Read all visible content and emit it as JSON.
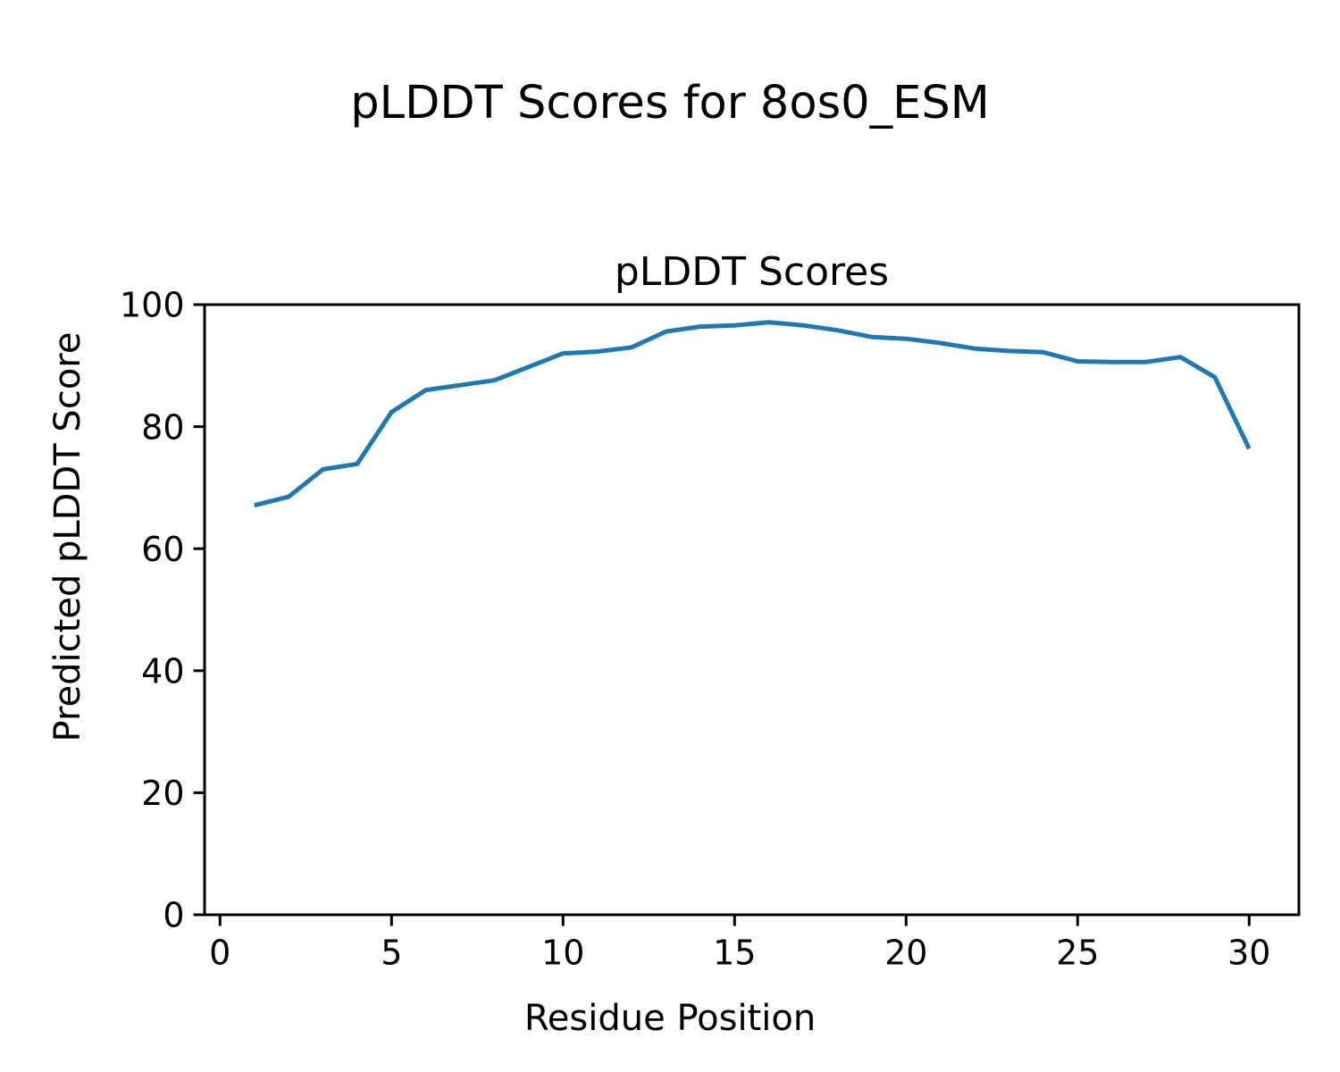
{
  "chart_data": {
    "type": "line",
    "suptitle": "pLDDT Scores for 8os0_ESM",
    "title": "pLDDT Scores",
    "xlabel": "Residue Position",
    "ylabel": "Predicted pLDDT Score",
    "x": [
      1,
      2,
      3,
      4,
      5,
      6,
      7,
      8,
      9,
      10,
      11,
      12,
      13,
      14,
      15,
      16,
      17,
      18,
      19,
      20,
      21,
      22,
      23,
      24,
      25,
      26,
      27,
      28,
      29,
      30
    ],
    "y": [
      67.1,
      68.5,
      73.0,
      73.9,
      82.4,
      86.0,
      86.8,
      87.6,
      89.8,
      92.0,
      92.3,
      93.0,
      95.6,
      96.4,
      96.6,
      97.1,
      96.6,
      95.8,
      94.7,
      94.4,
      93.7,
      92.8,
      92.4,
      92.2,
      90.7,
      90.6,
      90.6,
      91.4,
      88.1,
      76.4
    ],
    "xlim": [
      -0.45,
      31.45
    ],
    "ylim": [
      0,
      100
    ],
    "xticks": [
      0,
      5,
      10,
      15,
      20,
      25,
      30
    ],
    "yticks": [
      0,
      20,
      40,
      60,
      80,
      100
    ],
    "grid": false,
    "legend": "none",
    "line_color": "#1f77b4",
    "line_width": 5,
    "spine_color": "#000000",
    "background_color": "#ffffff"
  }
}
